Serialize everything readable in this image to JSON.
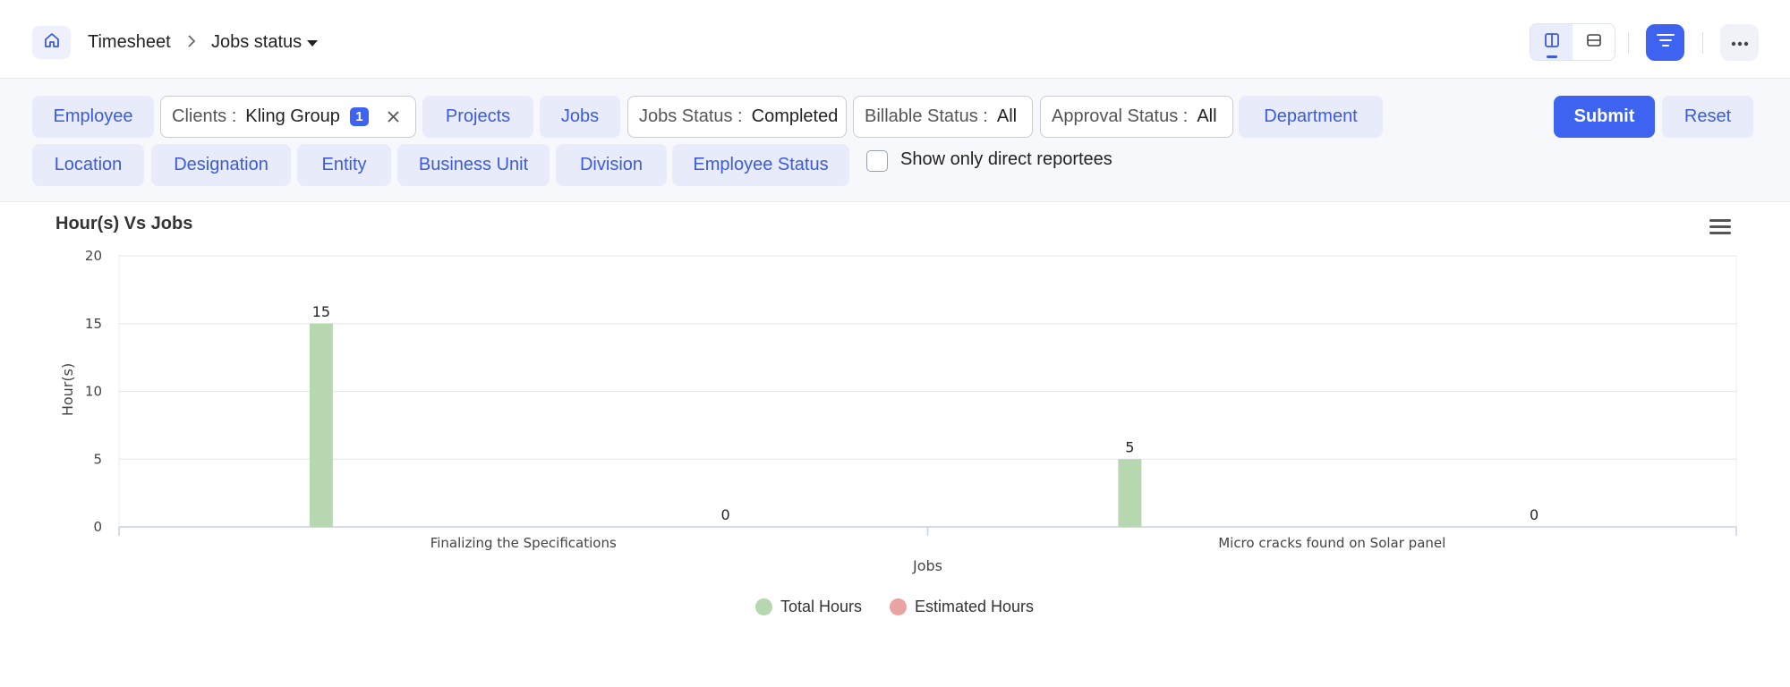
{
  "header": {
    "breadcrumb_root": "Timesheet",
    "current_page": "Jobs status"
  },
  "filters": {
    "employee": "Employee",
    "clients_label": "Clients :",
    "clients_value": "Kling Group",
    "clients_count": "1",
    "projects": "Projects",
    "jobs": "Jobs",
    "jobs_status_label": "Jobs Status :",
    "jobs_status_value": "Completed",
    "billable_label": "Billable Status :",
    "billable_value": "All",
    "approval_label": "Approval Status :",
    "approval_value": "All",
    "department": "Department",
    "location": "Location",
    "designation": "Designation",
    "entity": "Entity",
    "business_unit": "Business Unit",
    "division": "Division",
    "employee_status": "Employee Status",
    "direct_reportees": "Show only direct reportees",
    "submit": "Submit",
    "reset": "Reset"
  },
  "colors": {
    "accent": "#3e63f0",
    "total_hours": "#b7d7b0",
    "estimated_hours": "#e8a3a3"
  },
  "chart_data": {
    "type": "bar",
    "title": "Hour(s) Vs Jobs",
    "xlabel": "Jobs",
    "ylabel": "Hour(s)",
    "ylim": [
      0,
      20
    ],
    "yticks": [
      "0",
      "5",
      "10",
      "15",
      "20"
    ],
    "categories": [
      "Finalizing the Specifications",
      "Micro cracks found on Solar panel"
    ],
    "series": [
      {
        "name": "Total Hours",
        "values": [
          15,
          5
        ],
        "color": "#b7d7b0"
      },
      {
        "name": "Estimated Hours",
        "values": [
          0,
          0
        ],
        "color": "#e8a3a3"
      }
    ],
    "grid": true,
    "legend": "bottom-center"
  }
}
